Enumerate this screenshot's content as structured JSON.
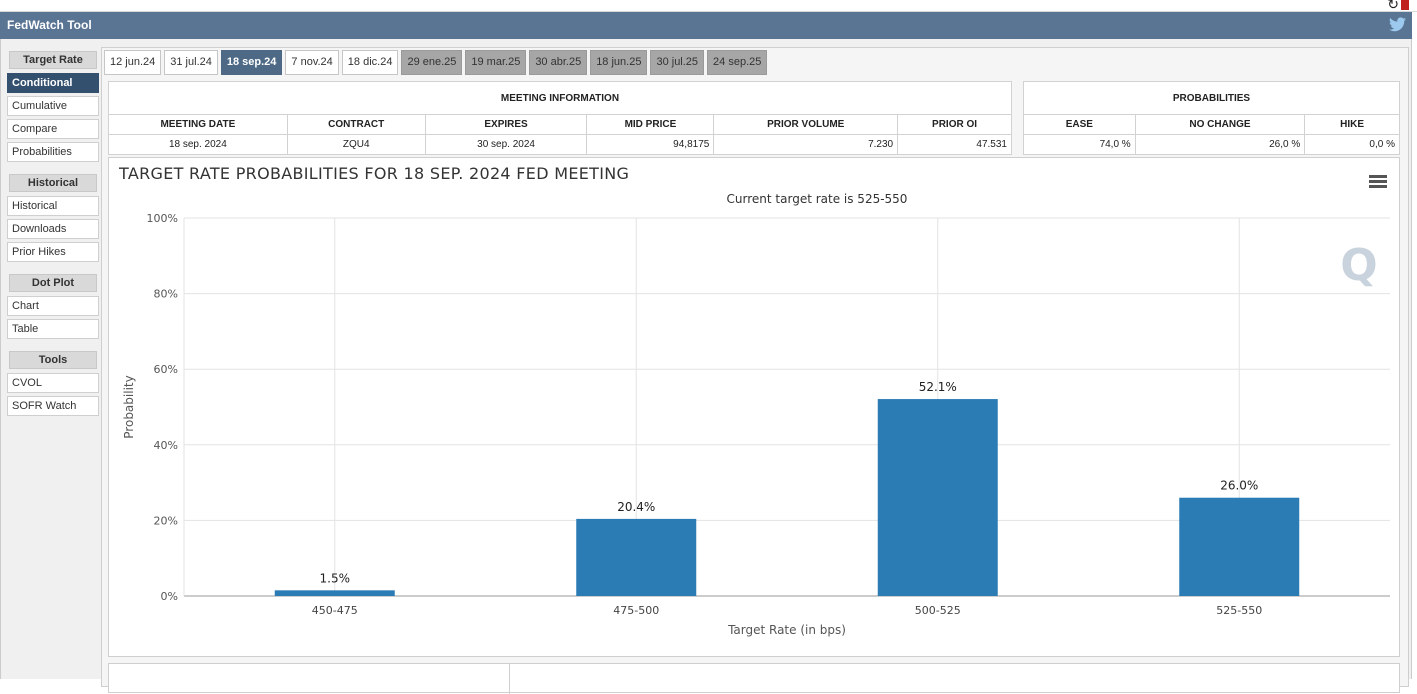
{
  "app": {
    "title": "FedWatch Tool"
  },
  "top_icons": {
    "refresh": "refresh-icon",
    "pdf": "pdf-icon",
    "twitter": "twitter-icon"
  },
  "sidebar": {
    "target_rate": {
      "title": "Target Rate",
      "items": [
        "Conditional",
        "Cumulative",
        "Compare",
        "Probabilities"
      ]
    },
    "historical": {
      "title": "Historical",
      "items": [
        "Historical",
        "Downloads",
        "Prior Hikes"
      ]
    },
    "dot_plot": {
      "title": "Dot Plot",
      "items": [
        "Chart",
        "Table"
      ]
    },
    "tools": {
      "title": "Tools",
      "items": [
        "CVOL",
        "SOFR Watch"
      ]
    }
  },
  "tabs": [
    "12 jun.24",
    "31 jul.24",
    "18 sep.24",
    "7 nov.24",
    "18 dic.24",
    "29 ene.25",
    "19 mar.25",
    "30 abr.25",
    "18 jun.25",
    "30 jul.25",
    "24 sep.25"
  ],
  "meeting_info": {
    "title": "MEETING INFORMATION",
    "headers": [
      "MEETING DATE",
      "CONTRACT",
      "EXPIRES",
      "MID PRICE",
      "PRIOR VOLUME",
      "PRIOR OI"
    ],
    "values": [
      "18 sep. 2024",
      "ZQU4",
      "30 sep. 2024",
      "94,8175",
      "7.230",
      "47.531"
    ]
  },
  "probabilities": {
    "title": "PROBABILITIES",
    "headers": [
      "EASE",
      "NO CHANGE",
      "HIKE"
    ],
    "values": [
      "74,0 %",
      "26,0 %",
      "0,0 %"
    ]
  },
  "chart_data": {
    "type": "bar",
    "title": "TARGET RATE PROBABILITIES FOR 18 SEP. 2024 FED MEETING",
    "subtitle": "Current target rate is 525-550",
    "xlabel": "Target Rate (in bps)",
    "ylabel": "Probability",
    "categories": [
      "450-475",
      "475-500",
      "500-525",
      "525-550"
    ],
    "values": [
      1.5,
      20.4,
      52.1,
      26.0
    ],
    "data_labels": [
      "1.5%",
      "20.4%",
      "52.1%",
      "26.0%"
    ],
    "ylim": [
      0,
      100
    ],
    "yticks": [
      "0%",
      "20%",
      "40%",
      "60%",
      "80%",
      "100%"
    ],
    "bar_color": "#2b7bb5",
    "grid": true,
    "watermark": "Q"
  }
}
